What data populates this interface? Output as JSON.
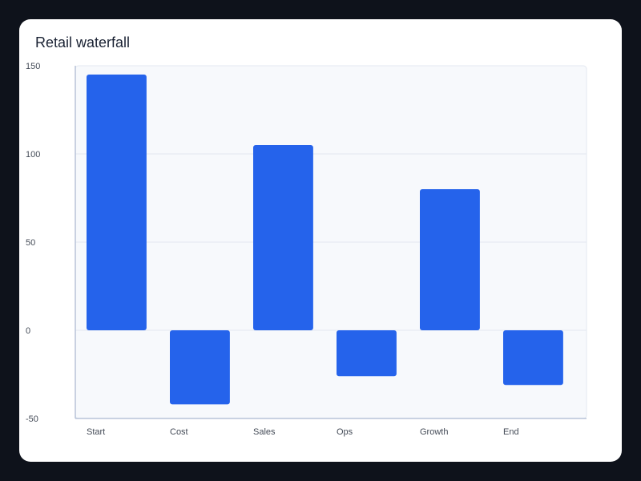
{
  "chart_data": {
    "type": "bar",
    "subtype": "waterfall",
    "title": "Retail waterfall",
    "xlabel": "",
    "ylabel": "",
    "categories": [
      "Start",
      "Cost",
      "Sales",
      "Ops",
      "Growth",
      "End"
    ],
    "values": [
      145,
      -42,
      105,
      -26,
      80,
      -31
    ],
    "ylim": [
      -50,
      150
    ],
    "yticks": [
      -50,
      0,
      50,
      100,
      150
    ],
    "grid": true,
    "legend": "none"
  },
  "colors": {
    "bar": "#2563eb",
    "plot_bg": "#f7f9fc",
    "grid": "#e3e8f0",
    "axis": "#b8c4d8",
    "page_bg": "#0e121b",
    "card_bg": "#ffffff"
  }
}
